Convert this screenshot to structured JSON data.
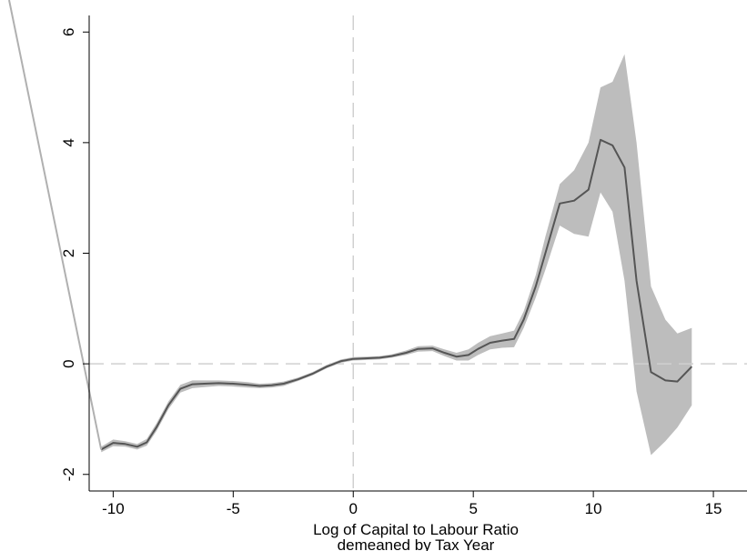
{
  "chart_data": {
    "type": "line",
    "xlabel": [
      "Log of Capital to Labour Ratio",
      "demeaned by Tax Year"
    ],
    "x_ticks": [
      -10,
      -5,
      0,
      5,
      10,
      15
    ],
    "y_ticks": [
      -2,
      0,
      2,
      4,
      6
    ],
    "xlim": [
      -11,
      16.4
    ],
    "ylim": [
      -2.3,
      6.3
    ],
    "grid": false,
    "legend": "none",
    "reference_lines": [
      {
        "axis": "x",
        "value": 0,
        "style": "dashed",
        "color": "#d0d0d0"
      },
      {
        "axis": "y",
        "value": 0,
        "style": "dashed",
        "color": "#d0d0d0"
      }
    ],
    "series": [
      {
        "role": "estimate",
        "color": "#555555",
        "x": [
          -10.5,
          -10.0,
          -9.5,
          -9.0,
          -8.6,
          -8.2,
          -7.7,
          -7.2,
          -6.7,
          -6.2,
          -5.6,
          -5.0,
          -4.4,
          -3.9,
          -3.4,
          -2.9,
          -2.3,
          -1.7,
          -1.1,
          -0.5,
          0.0,
          0.6,
          1.1,
          1.6,
          2.2,
          2.7,
          3.3,
          3.8,
          4.3,
          4.8,
          5.2,
          5.7,
          6.2,
          6.7,
          7.1,
          7.6,
          8.0,
          8.6,
          9.2,
          9.8,
          10.3,
          10.8,
          11.3,
          11.8,
          12.4,
          13.0,
          13.5,
          14.1
        ],
        "y": [
          -1.55,
          -1.43,
          -1.45,
          -1.5,
          -1.42,
          -1.15,
          -0.75,
          -0.45,
          -0.37,
          -0.36,
          -0.35,
          -0.36,
          -0.38,
          -0.4,
          -0.39,
          -0.36,
          -0.28,
          -0.18,
          -0.05,
          0.05,
          0.09,
          0.1,
          0.11,
          0.14,
          0.2,
          0.27,
          0.28,
          0.2,
          0.13,
          0.16,
          0.27,
          0.38,
          0.42,
          0.45,
          0.8,
          1.4,
          2.0,
          2.9,
          2.95,
          3.15,
          4.05,
          3.95,
          3.55,
          1.5,
          -0.15,
          -0.3,
          -0.32,
          -0.05
        ]
      },
      {
        "role": "confidence_band",
        "color": "#bdbdbd",
        "x": [
          -10.5,
          -10.0,
          -9.5,
          -9.0,
          -8.6,
          -8.2,
          -7.7,
          -7.2,
          -6.7,
          -6.2,
          -5.6,
          -5.0,
          -4.4,
          -3.9,
          -3.4,
          -2.9,
          -2.3,
          -1.7,
          -1.1,
          -0.5,
          0.0,
          0.6,
          1.1,
          1.6,
          2.2,
          2.7,
          3.3,
          3.8,
          4.3,
          4.8,
          5.2,
          5.7,
          6.2,
          6.7,
          7.1,
          7.6,
          8.0,
          8.6,
          9.2,
          9.8,
          10.3,
          10.8,
          11.3,
          11.8,
          12.4,
          13.0,
          13.5,
          14.1
        ],
        "upper": [
          -1.5,
          -1.37,
          -1.4,
          -1.45,
          -1.36,
          -1.08,
          -0.68,
          -0.38,
          -0.3,
          -0.3,
          -0.3,
          -0.31,
          -0.33,
          -0.36,
          -0.35,
          -0.32,
          -0.25,
          -0.15,
          -0.02,
          0.08,
          0.12,
          0.13,
          0.14,
          0.17,
          0.24,
          0.32,
          0.33,
          0.26,
          0.2,
          0.26,
          0.38,
          0.5,
          0.55,
          0.6,
          0.95,
          1.6,
          2.3,
          3.25,
          3.5,
          4.0,
          5.0,
          5.1,
          5.6,
          4.0,
          1.4,
          0.8,
          0.55,
          0.65
        ],
        "lower": [
          -1.6,
          -1.49,
          -1.5,
          -1.55,
          -1.48,
          -1.22,
          -0.82,
          -0.52,
          -0.44,
          -0.42,
          -0.4,
          -0.41,
          -0.43,
          -0.44,
          -0.43,
          -0.4,
          -0.31,
          -0.21,
          -0.08,
          0.02,
          0.06,
          0.07,
          0.08,
          0.11,
          0.16,
          0.22,
          0.23,
          0.14,
          0.06,
          0.06,
          0.16,
          0.26,
          0.29,
          0.3,
          0.65,
          1.2,
          1.7,
          2.5,
          2.35,
          2.3,
          3.1,
          2.75,
          1.5,
          -0.5,
          -1.65,
          -1.4,
          -1.15,
          -0.75
        ]
      },
      {
        "role": "left-edge-line",
        "color": "#b0b0b0",
        "x": [
          -11.0,
          -10.5
        ],
        "y": [
          -0.45,
          -1.55
        ]
      }
    ]
  }
}
